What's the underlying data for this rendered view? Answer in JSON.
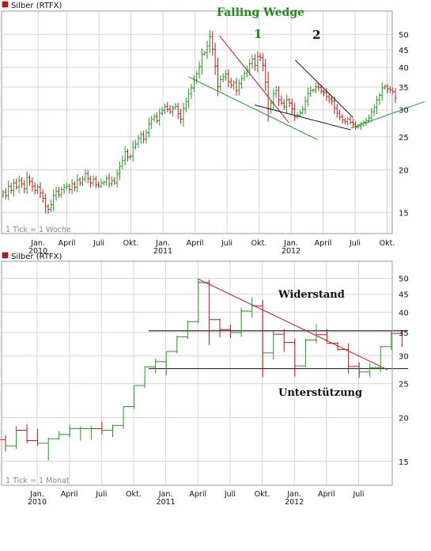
{
  "colors": {
    "up": "#1e9a1e",
    "down": "#c01818",
    "grid": "#d4d4d4",
    "frame": "#999999",
    "redTrend": "#c01818",
    "greenTrend": "#1e9a1e",
    "black": "#111111"
  },
  "chart_data": [
    {
      "type": "ohlc",
      "title": "Silber (RTFX)",
      "note": "1 Tick = 1 Woche",
      "yscale": "log",
      "ylim": [
        13,
        52
      ],
      "yticks": [
        15,
        20,
        25,
        30,
        35,
        40,
        45,
        50
      ],
      "xlabels": [
        {
          "t": "Jan.",
          "sub": "2010",
          "m": 0.3
        },
        {
          "t": "April",
          "sub": "",
          "m": 3
        },
        {
          "t": "Juli",
          "sub": "",
          "m": 6
        },
        {
          "t": "Okt.",
          "sub": "",
          "m": 9
        },
        {
          "t": "Jan.",
          "sub": "2011",
          "m": 12
        },
        {
          "t": "April",
          "sub": "",
          "m": 15
        },
        {
          "t": "Juli",
          "sub": "",
          "m": 18
        },
        {
          "t": "Okt.",
          "sub": "",
          "m": 21
        },
        {
          "t": "Jan.",
          "sub": "2012",
          "m": 24
        },
        {
          "t": "April",
          "sub": "",
          "m": 27
        },
        {
          "t": "Juli",
          "sub": "",
          "m": 30
        },
        {
          "t": "Okt.",
          "sub": "",
          "m": 33
        }
      ],
      "annotations": {
        "title": "Falling Wedge",
        "label1": "1",
        "label2": "2"
      },
      "trendlines": [
        {
          "color": "redTrend",
          "x1": 17.3,
          "y1": 49.5,
          "x2": 23.8,
          "y2": 27.5
        },
        {
          "color": "greenTrend",
          "x1": 14.4,
          "y1": 37.5,
          "x2": 26.5,
          "y2": 24.5
        },
        {
          "color": "black",
          "x1": 20.6,
          "y1": 31.0,
          "x2": 29.6,
          "y2": 26.2
        },
        {
          "color": "black",
          "x1": 24.4,
          "y1": 42.0,
          "x2": 29.8,
          "y2": 28.5
        },
        {
          "color": "greenTrend",
          "x1": 29.6,
          "y1": 26.5,
          "x2": 36.5,
          "y2": 31.7
        }
      ],
      "closes": [
        17.2,
        16.8,
        17.9,
        17.4,
        18.3,
        17.8,
        18.6,
        18.2,
        17.6,
        19.0,
        18.5,
        17.9,
        17.4,
        17.8,
        17.1,
        16.5,
        15.6,
        15.3,
        15.8,
        16.8,
        17.3,
        16.9,
        17.5,
        17.8,
        17.9,
        17.5,
        18.2,
        17.8,
        18.7,
        18.3,
        18.8,
        19.5,
        18.8,
        18.3,
        18.8,
        18.1,
        17.9,
        18.3,
        18.4,
        18.9,
        18.2,
        18.6,
        18.3,
        19.5,
        20.5,
        21.3,
        22.6,
        21.8,
        21.9,
        23.3,
        23.8,
        24.7,
        25.4,
        24.6,
        25.7,
        27.3,
        28.2,
        28.7,
        27.9,
        29.3,
        29.9,
        30.7,
        30.1,
        29.6,
        30.4,
        30.7,
        29.2,
        28.2,
        30.3,
        31.7,
        33.4,
        34.8,
        36.7,
        38.3,
        40.2,
        43.7,
        44.1,
        46.2,
        49.2,
        45.2,
        40.3,
        35.1,
        36.8,
        37.5,
        38.2,
        36.3,
        35.4,
        36.1,
        34.2,
        35.8,
        37.1,
        38.4,
        39.2,
        41.0,
        42.3,
        40.5,
        43.1,
        42.7,
        40.5,
        36.2,
        30.2,
        31.4,
        33.5,
        34.2,
        32.1,
        31.4,
        30.6,
        32.1,
        31.4,
        30.2,
        28.6,
        28.9,
        29.4,
        30.1,
        31.8,
        33.5,
        34.2,
        34.3,
        35.1,
        34.9,
        34.0,
        33.7,
        32.8,
        32.3,
        31.8,
        30.3,
        29.3,
        28.6,
        28.0,
        27.7,
        28.2,
        27.6,
        27.2,
        26.7,
        26.9,
        27.3,
        27.6,
        27.9,
        28.4,
        29.6,
        30.5,
        32.1,
        33.1,
        34.8,
        35.2,
        34.6,
        34.3,
        33.9,
        32.5
      ]
    },
    {
      "type": "ohlc",
      "title": "Silber (RTFX)",
      "note": "1 Tick = 1 Monat",
      "yscale": "log",
      "ylim": [
        13,
        52
      ],
      "yticks": [
        15,
        20,
        25,
        30,
        35,
        40,
        45,
        50
      ],
      "xlabels": [
        {
          "t": "Jan.",
          "sub": "2010",
          "m": 0
        },
        {
          "t": "April",
          "sub": "",
          "m": 3
        },
        {
          "t": "Juli",
          "sub": "",
          "m": 6
        },
        {
          "t": "Okt.",
          "sub": "",
          "m": 9
        },
        {
          "t": "Jan.",
          "sub": "2011",
          "m": 12
        },
        {
          "t": "April",
          "sub": "",
          "m": 15
        },
        {
          "t": "Juli",
          "sub": "",
          "m": 18
        },
        {
          "t": "Okt.",
          "sub": "",
          "m": 21
        },
        {
          "t": "Jan.",
          "sub": "2012",
          "m": 24
        },
        {
          "t": "April",
          "sub": "",
          "m": 27
        },
        {
          "t": "Juli",
          "sub": "",
          "m": 30
        }
      ],
      "annotations": {
        "resistance": "Widerstand",
        "support": "Unterstützung"
      },
      "hlines": [
        35.4,
        27.6
      ],
      "trendline": {
        "x1": 15.0,
        "y1": 49.8,
        "x2": 32.7,
        "y2": 27.4
      },
      "bars": [
        {
          "o": 17.3,
          "h": 17.8,
          "l": 16.0,
          "c": 16.6
        },
        {
          "o": 16.6,
          "h": 18.9,
          "l": 16.3,
          "c": 18.6
        },
        {
          "o": 18.4,
          "h": 19.2,
          "l": 16.9,
          "c": 17.1
        },
        {
          "o": 17.2,
          "h": 18.6,
          "l": 16.6,
          "c": 16.9
        },
        {
          "o": 16.9,
          "h": 17.5,
          "l": 15.1,
          "c": 17.5
        },
        {
          "o": 17.4,
          "h": 18.3,
          "l": 17.3,
          "c": 17.9
        },
        {
          "o": 17.9,
          "h": 19.0,
          "l": 17.6,
          "c": 18.6
        },
        {
          "o": 18.6,
          "h": 18.9,
          "l": 17.2,
          "c": 18.6
        },
        {
          "o": 18.6,
          "h": 18.9,
          "l": 17.3,
          "c": 18.6
        },
        {
          "o": 18.6,
          "h": 19.5,
          "l": 17.9,
          "c": 18.4
        },
        {
          "o": 18.4,
          "h": 19.1,
          "l": 17.6,
          "c": 19.0
        },
        {
          "o": 19.0,
          "h": 21.5,
          "l": 18.6,
          "c": 21.5
        },
        {
          "o": 21.5,
          "h": 24.6,
          "l": 21.2,
          "c": 24.6
        },
        {
          "o": 24.7,
          "h": 28.0,
          "l": 24.3,
          "c": 27.9
        },
        {
          "o": 27.9,
          "h": 29.5,
          "l": 26.8,
          "c": 28.9
        },
        {
          "o": 28.9,
          "h": 30.8,
          "l": 26.4,
          "c": 30.8
        },
        {
          "o": 30.9,
          "h": 34.3,
          "l": 30.5,
          "c": 34.0
        },
        {
          "o": 34.0,
          "h": 37.8,
          "l": 33.5,
          "c": 37.6
        },
        {
          "o": 37.6,
          "h": 49.8,
          "l": 37.2,
          "c": 48.6
        },
        {
          "o": 48.6,
          "h": 49.5,
          "l": 32.2,
          "c": 38.1
        },
        {
          "o": 38.1,
          "h": 38.4,
          "l": 33.9,
          "c": 35.7
        },
        {
          "o": 35.7,
          "h": 36.8,
          "l": 33.7,
          "c": 34.9
        },
        {
          "o": 35.0,
          "h": 41.2,
          "l": 34.0,
          "c": 40.2
        },
        {
          "o": 40.3,
          "h": 44.1,
          "l": 38.6,
          "c": 41.7
        },
        {
          "o": 41.7,
          "h": 43.3,
          "l": 26.1,
          "c": 30.4
        },
        {
          "o": 30.6,
          "h": 35.3,
          "l": 29.3,
          "c": 34.6
        },
        {
          "o": 34.6,
          "h": 35.8,
          "l": 30.8,
          "c": 32.9
        },
        {
          "o": 32.8,
          "h": 33.6,
          "l": 26.2,
          "c": 28.1
        },
        {
          "o": 28.1,
          "h": 33.6,
          "l": 27.9,
          "c": 33.4
        },
        {
          "o": 33.3,
          "h": 37.0,
          "l": 32.6,
          "c": 34.6
        },
        {
          "o": 34.5,
          "h": 35.8,
          "l": 32.8,
          "c": 32.6
        },
        {
          "o": 32.6,
          "h": 32.9,
          "l": 31.0,
          "c": 31.4
        },
        {
          "o": 31.3,
          "h": 32.6,
          "l": 26.7,
          "c": 28.0
        },
        {
          "o": 28.0,
          "h": 28.8,
          "l": 26.0,
          "c": 26.9
        },
        {
          "o": 27.0,
          "h": 28.6,
          "l": 26.1,
          "c": 27.8
        },
        {
          "o": 27.8,
          "h": 32.0,
          "l": 27.0,
          "c": 31.9
        },
        {
          "o": 31.9,
          "h": 35.4,
          "l": 31.2,
          "c": 34.8
        },
        {
          "o": 34.8,
          "h": 35.3,
          "l": 31.8,
          "c": 32.0
        }
      ]
    }
  ]
}
